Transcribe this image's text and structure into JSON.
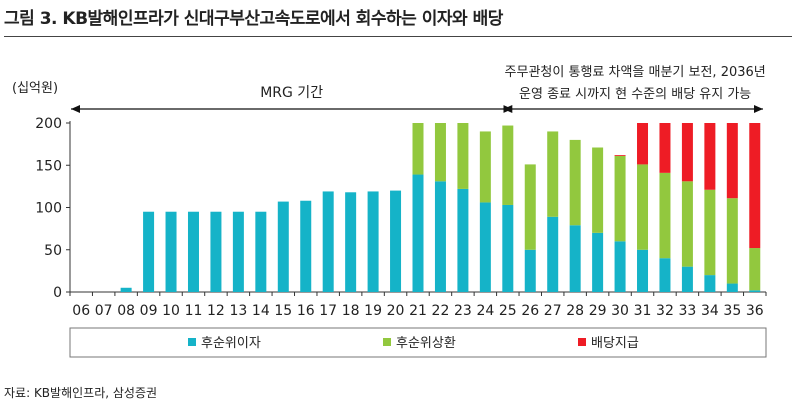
{
  "title": "그림 3. KB발해인프라가 신대구부산고속도로에서 회수하는 이자와 배당",
  "source": "자료: KB발해인프라, 삼성증권",
  "chart_data": {
    "type": "bar",
    "stacked": true,
    "unit_label": "(십억원)",
    "categories": [
      "06",
      "07",
      "08",
      "09",
      "10",
      "11",
      "12",
      "13",
      "14",
      "15",
      "16",
      "17",
      "18",
      "19",
      "20",
      "21",
      "22",
      "23",
      "24",
      "25",
      "26",
      "27",
      "28",
      "29",
      "30",
      "31",
      "32",
      "33",
      "34",
      "35",
      "36"
    ],
    "ylim": [
      0,
      200
    ],
    "yticks": [
      0,
      50,
      100,
      150,
      200
    ],
    "grid": false,
    "legend_position": "bottom",
    "series": [
      {
        "name": "후순위이자",
        "color": "#15b3c8",
        "values": [
          0,
          0,
          5,
          95,
          95,
          95,
          95,
          95,
          95,
          107,
          108,
          119,
          118,
          119,
          120,
          139,
          131,
          122,
          106,
          103,
          50,
          89,
          79,
          70,
          60,
          50,
          40,
          30,
          20,
          10,
          2
        ]
      },
      {
        "name": "후순위상환",
        "color": "#92c83e",
        "values": [
          0,
          0,
          0,
          0,
          0,
          0,
          0,
          0,
          0,
          0,
          0,
          0,
          0,
          0,
          0,
          61,
          69,
          78,
          84,
          94,
          101,
          101,
          101,
          101,
          101,
          101,
          101,
          101,
          101,
          101,
          50
        ]
      },
      {
        "name": "배당지급",
        "color": "#ee1c25",
        "values": [
          0,
          0,
          0,
          0,
          0,
          0,
          0,
          0,
          0,
          0,
          0,
          0,
          0,
          0,
          0,
          0,
          0,
          0,
          0,
          0,
          0,
          0,
          0,
          0,
          1,
          49,
          59,
          69,
          79,
          89,
          148
        ]
      }
    ],
    "annotations": [
      {
        "id": "mrg",
        "text": "MRG 기간",
        "from": "06",
        "to": "25"
      },
      {
        "id": "post",
        "lines": [
          "주무관청이 통행료 차액을 매분기 보전, 2036년",
          "운영 종료 시까지 현 수준의 배당 유지 가능"
        ],
        "from": "25",
        "to": "36"
      }
    ]
  }
}
